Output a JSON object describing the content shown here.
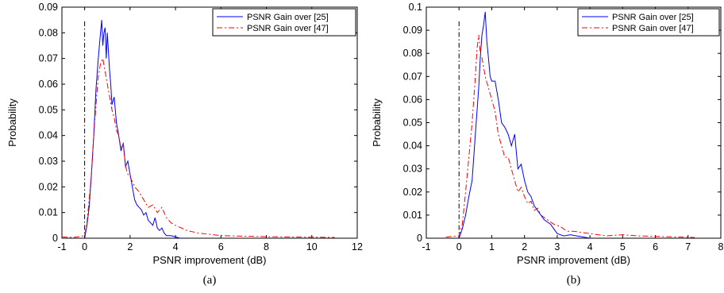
{
  "chart_data": [
    {
      "type": "line",
      "caption": "(a)",
      "xlabel": "PSNR improvement (dB)",
      "ylabel": "Probability",
      "xlim": [
        -1,
        12
      ],
      "ylim": [
        0,
        0.09
      ],
      "xticks": [
        "-1",
        "0",
        "2",
        "4",
        "6",
        "8",
        "10",
        "12"
      ],
      "yticks": [
        "0",
        "0.01",
        "0.02",
        "0.03",
        "0.04",
        "0.05",
        "0.06",
        "0.07",
        "0.08",
        "0.09"
      ],
      "grid": false,
      "legend_position": "top-right",
      "reference_line_x": 0,
      "series": [
        {
          "name": "PSNR Gain over [25]",
          "style": "solid",
          "color": "#0000ff",
          "x": [
            0.0,
            0.1,
            0.2,
            0.3,
            0.4,
            0.5,
            0.6,
            0.7,
            0.75,
            0.8,
            0.85,
            0.9,
            0.95,
            1.0,
            1.05,
            1.1,
            1.15,
            1.2,
            1.3,
            1.4,
            1.5,
            1.6,
            1.7,
            1.8,
            1.9,
            2.0,
            2.1,
            2.2,
            2.3,
            2.4,
            2.5,
            2.6,
            2.7,
            2.8,
            2.9,
            3.0,
            3.1,
            3.2,
            3.3,
            3.4,
            3.5,
            3.6,
            3.8,
            4.0,
            4.2
          ],
          "y": [
            0.0,
            0.005,
            0.012,
            0.025,
            0.04,
            0.058,
            0.07,
            0.08,
            0.085,
            0.075,
            0.08,
            0.082,
            0.07,
            0.08,
            0.072,
            0.065,
            0.06,
            0.052,
            0.055,
            0.045,
            0.04,
            0.034,
            0.037,
            0.028,
            0.03,
            0.025,
            0.02,
            0.015,
            0.013,
            0.012,
            0.011,
            0.009,
            0.01,
            0.007,
            0.006,
            0.005,
            0.008,
            0.004,
            0.003,
            0.004,
            0.002,
            0.001,
            0.001,
            0.0005,
            0.0
          ]
        },
        {
          "name": "PSNR Gain over [47]",
          "style": "dash-dot",
          "color": "#ff0000",
          "x": [
            -1.0,
            -0.5,
            0.0,
            0.1,
            0.2,
            0.3,
            0.4,
            0.5,
            0.6,
            0.7,
            0.8,
            0.9,
            1.0,
            1.1,
            1.2,
            1.3,
            1.4,
            1.5,
            1.6,
            1.7,
            1.8,
            1.9,
            2.0,
            2.2,
            2.4,
            2.6,
            2.8,
            3.0,
            3.2,
            3.4,
            3.6,
            3.8,
            4.0,
            4.5,
            5.0,
            5.5,
            6.0,
            7.0,
            8.0,
            9.0,
            10.0,
            11.0
          ],
          "y": [
            0.0005,
            0.0003,
            0.001,
            0.006,
            0.015,
            0.025,
            0.04,
            0.052,
            0.063,
            0.068,
            0.07,
            0.065,
            0.06,
            0.055,
            0.05,
            0.047,
            0.042,
            0.04,
            0.035,
            0.037,
            0.028,
            0.025,
            0.024,
            0.02,
            0.018,
            0.015,
            0.012,
            0.013,
            0.01,
            0.012,
            0.008,
            0.006,
            0.005,
            0.003,
            0.002,
            0.0015,
            0.001,
            0.0008,
            0.0006,
            0.0005,
            0.0004,
            0.0003
          ]
        }
      ]
    },
    {
      "type": "line",
      "caption": "(b)",
      "xlabel": "PSNR improvement (dB)",
      "ylabel": "Probability",
      "xlim": [
        -1,
        8
      ],
      "ylim": [
        0,
        0.1
      ],
      "xticks": [
        "-1",
        "0",
        "1",
        "2",
        "3",
        "4",
        "5",
        "6",
        "7",
        "8"
      ],
      "yticks": [
        "0",
        "0.01",
        "0.02",
        "0.03",
        "0.04",
        "0.05",
        "0.06",
        "0.07",
        "0.08",
        "0.09",
        "0.1"
      ],
      "grid": false,
      "legend_position": "top-right",
      "reference_line_x": 0,
      "series": [
        {
          "name": "PSNR Gain over [25]",
          "style": "solid",
          "color": "#0000ff",
          "x": [
            0.0,
            0.1,
            0.2,
            0.3,
            0.4,
            0.5,
            0.6,
            0.65,
            0.7,
            0.75,
            0.8,
            0.85,
            0.9,
            0.95,
            1.0,
            1.1,
            1.2,
            1.3,
            1.4,
            1.5,
            1.6,
            1.7,
            1.8,
            1.9,
            2.0,
            2.1,
            2.2,
            2.3,
            2.4,
            2.5,
            2.6,
            2.7,
            2.8,
            2.9,
            3.0,
            3.2,
            3.4,
            3.6,
            3.8,
            4.0
          ],
          "y": [
            0.0,
            0.004,
            0.01,
            0.018,
            0.025,
            0.045,
            0.065,
            0.078,
            0.088,
            0.092,
            0.098,
            0.085,
            0.078,
            0.07,
            0.068,
            0.068,
            0.06,
            0.05,
            0.048,
            0.045,
            0.04,
            0.045,
            0.03,
            0.032,
            0.025,
            0.02,
            0.018,
            0.014,
            0.012,
            0.01,
            0.008,
            0.007,
            0.006,
            0.004,
            0.002,
            0.001,
            0.0015,
            0.001,
            0.0005,
            0.0
          ]
        },
        {
          "name": "PSNR Gain over [47]",
          "style": "dash-dot",
          "color": "#ff0000",
          "x": [
            -0.4,
            0.0,
            0.1,
            0.2,
            0.3,
            0.4,
            0.5,
            0.55,
            0.6,
            0.65,
            0.7,
            0.8,
            0.9,
            1.0,
            1.1,
            1.2,
            1.3,
            1.4,
            1.5,
            1.6,
            1.7,
            1.8,
            1.9,
            2.0,
            2.1,
            2.2,
            2.3,
            2.4,
            2.5,
            2.7,
            2.9,
            3.1,
            3.3,
            3.5,
            4.0,
            4.5,
            5.0,
            5.5,
            6.0,
            6.5,
            7.0,
            7.2
          ],
          "y": [
            0.0005,
            0.001,
            0.006,
            0.02,
            0.035,
            0.05,
            0.07,
            0.082,
            0.088,
            0.08,
            0.078,
            0.07,
            0.065,
            0.06,
            0.055,
            0.045,
            0.04,
            0.035,
            0.035,
            0.03,
            0.025,
            0.02,
            0.022,
            0.018,
            0.015,
            0.016,
            0.012,
            0.013,
            0.01,
            0.008,
            0.006,
            0.005,
            0.003,
            0.003,
            0.002,
            0.001,
            0.0015,
            0.001,
            0.0008,
            0.0006,
            0.0004,
            0.0003
          ]
        }
      ]
    }
  ]
}
